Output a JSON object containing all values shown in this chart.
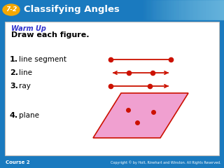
{
  "header_bg_color": "#1a7abf",
  "header_text": "Classifying Angles",
  "header_label": "7-2",
  "header_label_bg": "#f5a800",
  "body_bg_color": "#ffffff",
  "border_color": "#bbbbbb",
  "warm_up_color": "#3333cc",
  "warm_up_text": "Warm Up",
  "subtitle_text": "Draw each figure.",
  "items": [
    "line segment",
    "line",
    "ray",
    "plane"
  ],
  "red_color": "#cc1100",
  "pink_fill": "#f0a0d0",
  "footer_bg": "#1a7abf",
  "footer_text": "Course 2",
  "footer_right": "Copyright © by Holt, Rinehart and Winston. All Rights Reserved.",
  "fig_width": 3.2,
  "fig_height": 2.4,
  "dpi": 100
}
